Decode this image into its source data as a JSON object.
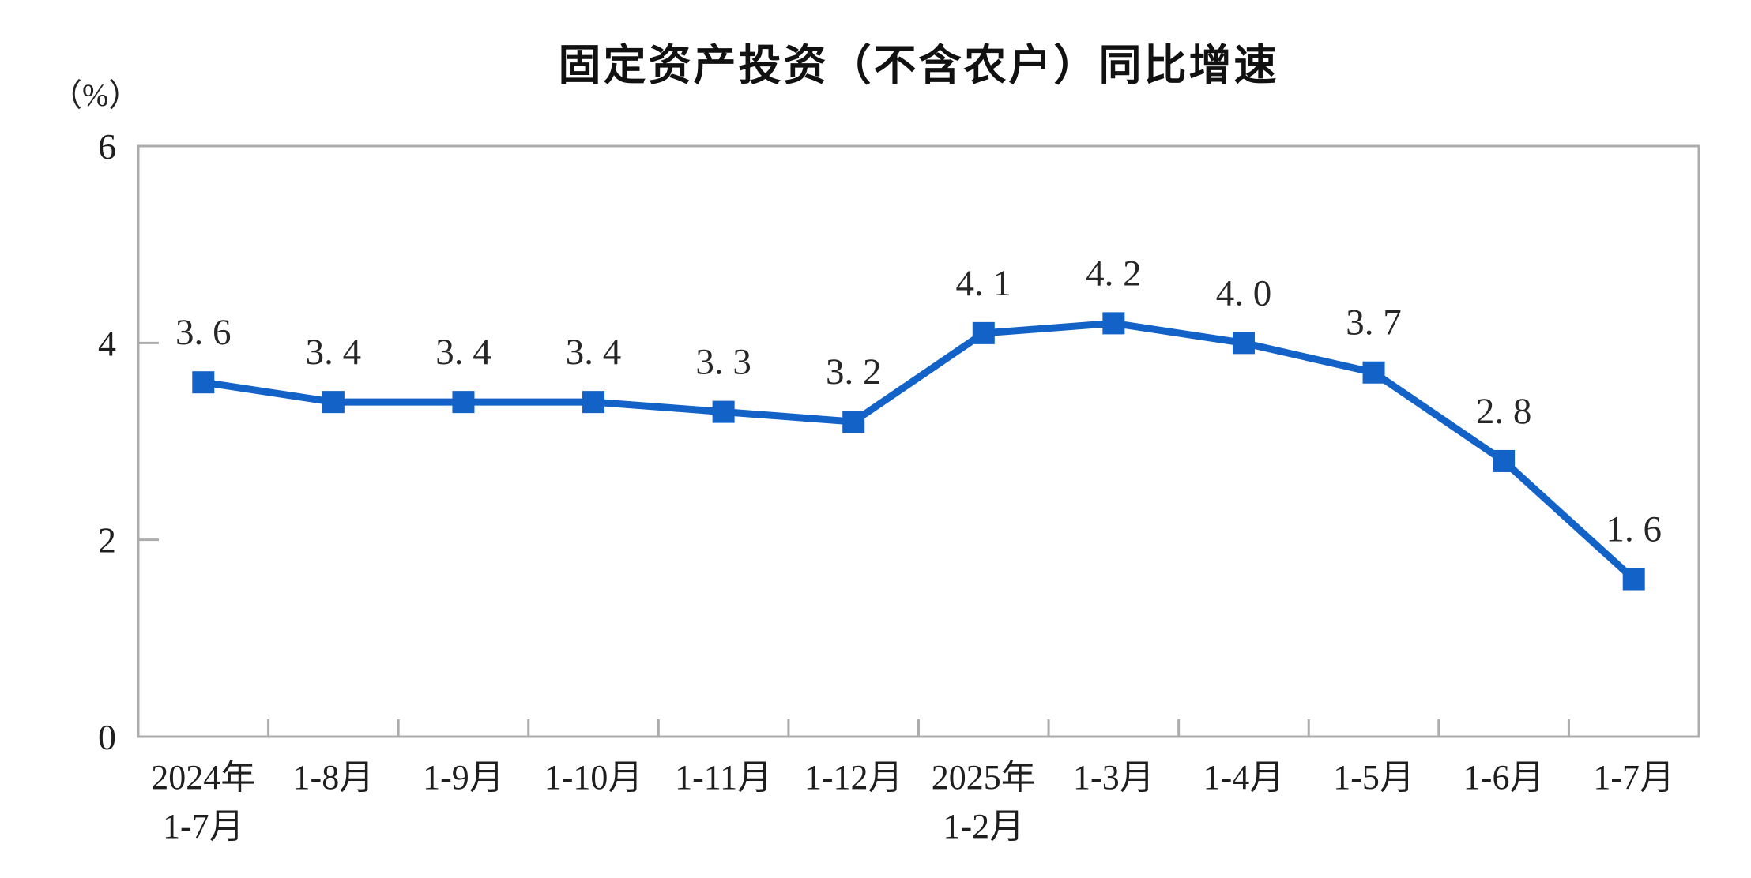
{
  "chart_data": {
    "type": "line",
    "title": "固定资产投资（不含农户）同比增速",
    "unit_label": "（%）",
    "categories": [
      [
        "2024年",
        "1-7月"
      ],
      [
        "1-8月"
      ],
      [
        "1-9月"
      ],
      [
        "1-10月"
      ],
      [
        "1-11月"
      ],
      [
        "1-12月"
      ],
      [
        "2025年",
        "1-2月"
      ],
      [
        "1-3月"
      ],
      [
        "1-4月"
      ],
      [
        "1-5月"
      ],
      [
        "1-6月"
      ],
      [
        "1-7月"
      ]
    ],
    "values": [
      3.6,
      3.4,
      3.4,
      3.4,
      3.3,
      3.2,
      4.1,
      4.2,
      4.0,
      3.7,
      2.8,
      1.6
    ],
    "point_labels": [
      "3. 6",
      "3. 4",
      "3. 4",
      "3. 4",
      "3. 3",
      "3. 2",
      "4. 1",
      "4. 2",
      "4. 0",
      "3. 7",
      "2. 8",
      "1. 6"
    ],
    "ylim": [
      0,
      6
    ],
    "yticks": [
      0,
      2,
      4,
      6
    ],
    "grid": false,
    "legend": null,
    "xlabel": "",
    "ylabel": "（%）",
    "colors": {
      "series": "#1262C7",
      "axis": "#ACACAC",
      "tick_label": "#1E1E1E",
      "data_label": "#262626",
      "title": "#111111"
    }
  }
}
